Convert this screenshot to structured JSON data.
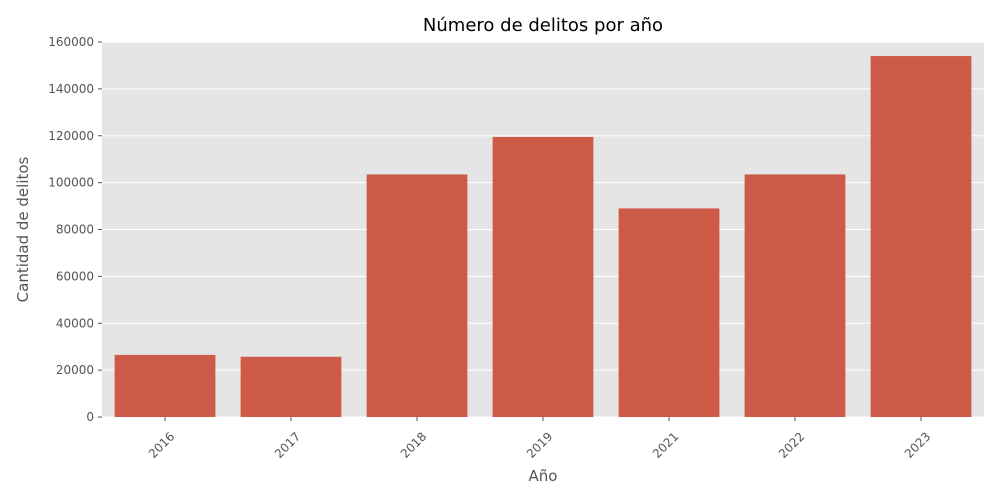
{
  "chart_data": {
    "type": "bar",
    "title": "Número de delitos por año",
    "xlabel": "Año",
    "ylabel": "Cantidad de delitos",
    "categories": [
      "2016",
      "2017",
      "2018",
      "2019",
      "2021",
      "2022",
      "2023"
    ],
    "values": [
      26500,
      25700,
      103500,
      119500,
      89000,
      103500,
      154000
    ],
    "ylim": [
      0,
      160000
    ],
    "yticks": [
      0,
      20000,
      40000,
      60000,
      80000,
      100000,
      120000,
      140000,
      160000
    ],
    "ytick_labels": [
      "0",
      "20000",
      "40000",
      "60000",
      "80000",
      "100000",
      "120000",
      "140000",
      "160000"
    ],
    "grid": true,
    "legend": "none",
    "colors": {
      "bar": "#cd5b47",
      "plot_background": "#e5e5e5",
      "grid": "#ffffff",
      "tick_text": "#555555"
    }
  }
}
